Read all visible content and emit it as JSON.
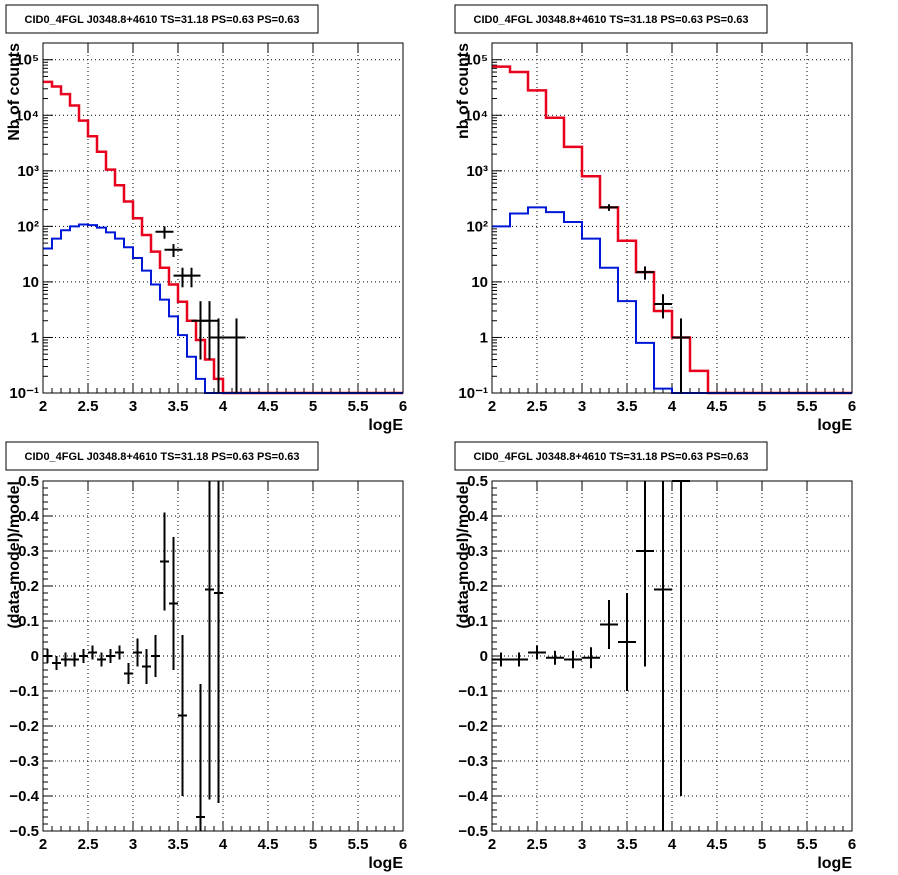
{
  "panels": [
    {
      "title": "CID0_4FGL J0348.8+4610 TS=31.18 PS=0.63 PS=0.63",
      "xlabel": "logE",
      "ylabel": "Nb of counts",
      "xticks": [
        "2",
        "2.5",
        "3",
        "3.5",
        "4",
        "4.5",
        "5",
        "5.5",
        "6"
      ],
      "yticks": [
        "10⁻¹",
        "1",
        "10",
        "10²",
        "10³",
        "10⁴",
        "10⁵"
      ]
    },
    {
      "title": "CID0_4FGL J0348.8+4610 TS=31.18 PS=0.63 PS=0.63",
      "xlabel": "logE",
      "ylabel": "nb of counts",
      "xticks": [
        "2",
        "2.5",
        "3",
        "3.5",
        "4",
        "4.5",
        "5",
        "5.5",
        "6"
      ],
      "yticks": [
        "10⁻¹",
        "1",
        "10",
        "10²",
        "10³",
        "10⁴",
        "10⁵"
      ]
    },
    {
      "title": "CID0_4FGL J0348.8+4610 TS=31.18 PS=0.63 PS=0.63",
      "xlabel": "logE",
      "ylabel": "(data-model)/model",
      "xticks": [
        "2",
        "2.5",
        "3",
        "3.5",
        "4",
        "4.5",
        "5",
        "5.5",
        "6"
      ],
      "yticks": [
        "−0.5",
        "−0.4",
        "−0.3",
        "−0.2",
        "−0.1",
        "0",
        "0.1",
        "0.2",
        "0.3",
        "0.4",
        "0.5"
      ]
    },
    {
      "title": "CID0_4FGL J0348.8+4610 TS=31.18 PS=0.63 PS=0.63",
      "xlabel": "logE",
      "ylabel": "(data-model)/model",
      "xticks": [
        "2",
        "2.5",
        "3",
        "3.5",
        "4",
        "4.5",
        "5",
        "5.5",
        "6"
      ],
      "yticks": [
        "−0.5",
        "−0.4",
        "−0.3",
        "−0.2",
        "−0.1",
        "0",
        "0.1",
        "0.2",
        "0.3",
        "0.4",
        "0.5"
      ]
    }
  ],
  "chart_data": [
    {
      "type": "line",
      "xlim": [
        2,
        6
      ],
      "ylim": [
        0.1,
        200000
      ],
      "yscale": "log",
      "grid": true,
      "series": [
        {
          "role": "model-total",
          "color": "#e8001c",
          "bin_width": 0.1,
          "bin_starts": [
            2.0,
            2.1,
            2.2,
            2.3,
            2.4,
            2.5,
            2.6,
            2.7,
            2.8,
            2.9,
            3.0,
            3.1,
            3.2,
            3.3,
            3.4,
            3.5,
            3.6,
            3.7,
            3.8,
            3.9,
            4.0,
            4.1,
            4.2,
            4.3,
            4.4,
            4.5,
            4.6,
            4.7,
            4.8,
            4.9,
            5.0,
            5.1,
            5.2,
            5.3,
            5.4,
            5.5,
            5.6,
            5.7,
            5.8,
            5.9
          ],
          "values": [
            40000,
            33000,
            24000,
            15000,
            8000,
            4200,
            2200,
            1050,
            550,
            280,
            140,
            70,
            35,
            18,
            9,
            4.4,
            2.0,
            0.9,
            0.4,
            0.18,
            0,
            0,
            0,
            0,
            0,
            0,
            0,
            0,
            0,
            0,
            0,
            0,
            0,
            0,
            0,
            0,
            0,
            0,
            0,
            0
          ]
        },
        {
          "role": "model-source",
          "color": "#0018d8",
          "bin_width": 0.1,
          "bin_starts": [
            2.0,
            2.1,
            2.2,
            2.3,
            2.4,
            2.5,
            2.6,
            2.7,
            2.8,
            2.9,
            3.0,
            3.1,
            3.2,
            3.3,
            3.4,
            3.5,
            3.6,
            3.7,
            3.8,
            3.9,
            4.0,
            4.1,
            4.2,
            4.3,
            4.4,
            4.5,
            4.6,
            4.7,
            4.8,
            4.9,
            5.0,
            5.1,
            5.2,
            5.3,
            5.4,
            5.5,
            5.6,
            5.7,
            5.8,
            5.9
          ],
          "values": [
            40,
            60,
            85,
            100,
            108,
            105,
            95,
            78,
            60,
            42,
            27,
            16,
            9,
            4.8,
            2.4,
            1.1,
            0.45,
            0.18,
            0,
            0,
            0,
            0,
            0,
            0,
            0,
            0,
            0,
            0,
            0,
            0,
            0,
            0,
            0,
            0,
            0,
            0,
            0,
            0,
            0,
            0
          ]
        },
        {
          "role": "data",
          "color": "#000000",
          "x": [
            3.35,
            3.45,
            3.55,
            3.65,
            3.75,
            3.85,
            3.95,
            4.15
          ],
          "y": [
            80,
            38,
            13,
            13,
            2,
            2,
            1,
            1
          ],
          "ylo": [
            60,
            28,
            8,
            8,
            0.4,
            0.4,
            0.1,
            0.1
          ],
          "yhi": [
            100,
            48,
            18,
            18,
            4.5,
            4.5,
            2.2,
            2.2
          ]
        }
      ]
    },
    {
      "type": "line",
      "xlim": [
        2,
        6
      ],
      "ylim": [
        0.1,
        200000
      ],
      "yscale": "log",
      "grid": true,
      "series": [
        {
          "role": "model-total",
          "color": "#e8001c",
          "bin_width": 0.2,
          "bin_starts": [
            2.0,
            2.2,
            2.4,
            2.6,
            2.8,
            3.0,
            3.2,
            3.4,
            3.6,
            3.8,
            4.0,
            4.2,
            4.4,
            4.6,
            4.8,
            5.0,
            5.2,
            5.4,
            5.6,
            5.8
          ],
          "values": [
            75000,
            60000,
            28000,
            9000,
            2700,
            800,
            220,
            55,
            15,
            3.0,
            1.0,
            0.25,
            0,
            0,
            0,
            0,
            0,
            0,
            0,
            0
          ]
        },
        {
          "role": "model-source",
          "color": "#0018d8",
          "bin_width": 0.2,
          "bin_starts": [
            2.0,
            2.2,
            2.4,
            2.6,
            2.8,
            3.0,
            3.2,
            3.4,
            3.6,
            3.8,
            4.0,
            4.2,
            4.4,
            4.6,
            4.8,
            5.0,
            5.2,
            5.4,
            5.6,
            5.8
          ],
          "values": [
            100,
            170,
            220,
            180,
            120,
            60,
            18,
            4.5,
            0.8,
            0.12,
            0,
            0,
            0,
            0,
            0,
            0,
            0,
            0,
            0,
            0
          ]
        },
        {
          "role": "data",
          "color": "#000000",
          "x": [
            3.3,
            3.7,
            3.9,
            4.1
          ],
          "y": [
            220,
            15,
            4,
            1
          ],
          "ylo": [
            190,
            11,
            2.2,
            0.1
          ],
          "yhi": [
            250,
            19,
            6,
            2.2
          ]
        }
      ]
    },
    {
      "type": "scatter",
      "xlim": [
        2,
        6
      ],
      "ylim": [
        -0.5,
        0.5
      ],
      "grid": true,
      "series": [
        {
          "role": "residuals",
          "color": "#000000",
          "xerr": 0.05,
          "x": [
            2.05,
            2.15,
            2.25,
            2.35,
            2.45,
            2.55,
            2.65,
            2.75,
            2.85,
            2.95,
            3.05,
            3.15,
            3.25,
            3.35,
            3.45,
            3.55,
            3.75,
            3.85,
            3.95
          ],
          "y": [
            0.0,
            -0.02,
            -0.01,
            -0.01,
            0.0,
            0.01,
            -0.01,
            0.0,
            0.01,
            -0.05,
            0.01,
            -0.03,
            0.0,
            0.27,
            0.15,
            -0.17,
            -0.46,
            0.19,
            0.18
          ],
          "yerr": [
            0.02,
            0.02,
            0.02,
            0.02,
            0.02,
            0.02,
            0.02,
            0.02,
            0.02,
            0.03,
            0.04,
            0.05,
            0.06,
            0.14,
            0.19,
            0.23,
            0.38,
            0.6,
            0.6
          ]
        }
      ]
    },
    {
      "type": "scatter",
      "xlim": [
        2,
        6
      ],
      "ylim": [
        -0.5,
        0.5
      ],
      "grid": true,
      "series": [
        {
          "role": "residuals",
          "color": "#000000",
          "xerr": 0.1,
          "x": [
            2.1,
            2.3,
            2.5,
            2.7,
            2.9,
            3.1,
            3.3,
            3.5,
            3.7,
            3.9,
            4.1
          ],
          "y": [
            -0.01,
            -0.01,
            0.01,
            -0.005,
            -0.01,
            -0.005,
            0.09,
            0.04,
            0.3,
            0.19,
            0.5
          ],
          "yerr": [
            0.02,
            0.02,
            0.02,
            0.02,
            0.025,
            0.03,
            0.07,
            0.14,
            0.33,
            0.75,
            0.9
          ]
        }
      ]
    }
  ]
}
